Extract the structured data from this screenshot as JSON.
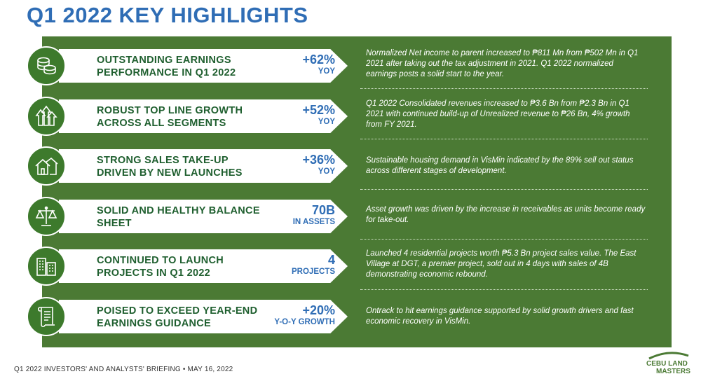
{
  "title": "Q1 2022 KEY HIGHLIGHTS",
  "highlights": [
    {
      "icon": "coins-icon",
      "label": "OUTSTANDING EARNINGS PERFORMANCE IN Q1 2022",
      "value": "+62%",
      "unit": "YOY",
      "description": "Normalized Net income to parent increased to ₱811 Mn from ₱502 Mn in Q1 2021 after taking out the tax adjustment in 2021. Q1 2022 normalized earnings posts a solid start to the year."
    },
    {
      "icon": "growth-arrows-icon",
      "label": "ROBUST TOP LINE GROWTH ACROSS ALL SEGMENTS",
      "value": "+52%",
      "unit": "YOY",
      "description": "Q1 2022 Consolidated revenues increased to ₱3.6 Bn from ₱2.3 Bn in Q1 2021 with continued build-up of Unrealized revenue to ₱26 Bn, 4% growth from FY 2021."
    },
    {
      "icon": "houses-icon",
      "label": "STRONG SALES TAKE-UP DRIVEN BY NEW LAUNCHES",
      "value": "+36%",
      "unit": "YOY",
      "description": "Sustainable housing demand in VisMin indicated by the 89% sell out status across different stages of development."
    },
    {
      "icon": "balance-scale-icon",
      "label": "SOLID AND HEALTHY BALANCE SHEET",
      "value": "70B",
      "unit": "IN ASSETS",
      "description": "Asset growth was driven by the increase in receivables as units become ready for take-out."
    },
    {
      "icon": "buildings-icon",
      "label": "CONTINUED TO LAUNCH PROJECTS IN Q1 2022",
      "value": "4",
      "unit": "PROJECTS",
      "description": "Launched 4 residential projects worth ₱5.3 Bn project sales value. The East Village at DGT, a premier project, sold out in 4 days with sales of 4B demonstrating economic rebound."
    },
    {
      "icon": "scroll-icon",
      "label": "POISED TO EXCEED YEAR-END EARNINGS GUIDANCE",
      "value": "+20%",
      "unit": "Y-O-Y GROWTH",
      "description": "Ontrack to hit earnings guidance supported by solid growth drivers and fast economic recovery in VisMin."
    }
  ],
  "footer": "Q1 2022 INVESTORS' AND ANALYSTS' BRIEFING • MAY 16, 2022",
  "logo": {
    "line1": "CEBU LAND",
    "line2": "MASTERS"
  },
  "colors": {
    "panel": "#4b7a34",
    "title": "#2f6db5",
    "label": "#1f5f2f",
    "icon_bg": "#3d7a2c"
  }
}
